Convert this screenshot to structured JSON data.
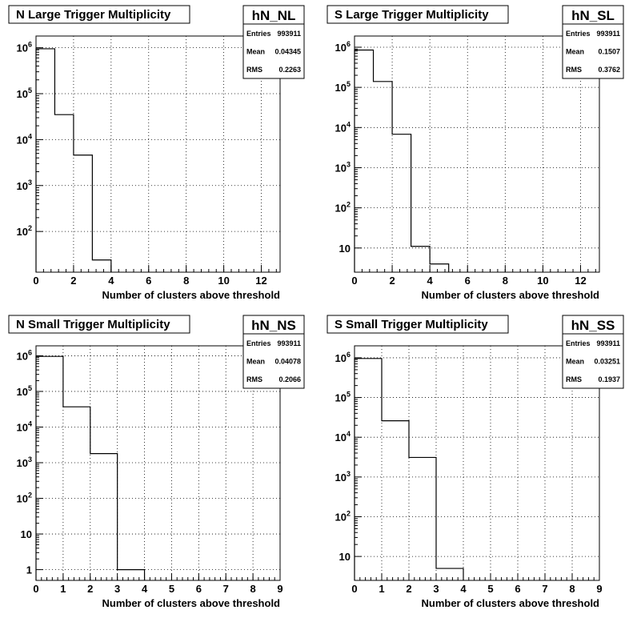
{
  "chart_data": [
    {
      "type": "histogram",
      "title": "N Large Trigger Multiplicity",
      "stats": {
        "name": "hN_NL",
        "entries": "993911",
        "mean": "0.04345",
        "rms": "0.2263"
      },
      "xlabel": "Number of clusters above threshold",
      "xlim": [
        0,
        13
      ],
      "xticks": [
        0,
        2,
        4,
        6,
        8,
        10,
        12
      ],
      "ylim": [
        13,
        1800000
      ],
      "log_y": true,
      "yticks": [
        100,
        1000,
        10000,
        100000,
        1000000
      ],
      "bin_width": 1,
      "bins": [
        {
          "x": 0,
          "y": 950000
        },
        {
          "x": 1,
          "y": 35000
        },
        {
          "x": 2,
          "y": 4600
        },
        {
          "x": 3,
          "y": 24
        }
      ],
      "grid": true
    },
    {
      "type": "histogram",
      "title": "S Large Trigger Multiplicity",
      "stats": {
        "name": "hN_SL",
        "entries": "993911",
        "mean": "0.1507",
        "rms": "0.3762"
      },
      "xlabel": "Number of clusters above threshold",
      "xlim": [
        0,
        13
      ],
      "xticks": [
        0,
        2,
        4,
        6,
        8,
        10,
        12
      ],
      "ylim": [
        2.5,
        1900000
      ],
      "log_y": true,
      "yticks": [
        10,
        100,
        1000,
        10000,
        100000,
        1000000
      ],
      "bin_width": 1,
      "bins": [
        {
          "x": 0,
          "y": 850000
        },
        {
          "x": 1,
          "y": 140000
        },
        {
          "x": 2,
          "y": 6800
        },
        {
          "x": 3,
          "y": 11
        },
        {
          "x": 4,
          "y": 4
        }
      ],
      "grid": true
    },
    {
      "type": "histogram",
      "title": "N Small Trigger Multiplicity",
      "stats": {
        "name": "hN_NS",
        "entries": "993911",
        "mean": "0.04078",
        "rms": "0.2066"
      },
      "xlabel": "Number of clusters above threshold",
      "xlim": [
        0,
        9
      ],
      "xticks": [
        0,
        1,
        2,
        3,
        4,
        5,
        6,
        7,
        8,
        9
      ],
      "ylim": [
        0.5,
        1900000
      ],
      "log_y": true,
      "yticks": [
        1,
        10,
        100,
        1000,
        10000,
        100000,
        1000000
      ],
      "bin_width": 1,
      "bins": [
        {
          "x": 0,
          "y": 960000
        },
        {
          "x": 1,
          "y": 37000
        },
        {
          "x": 2,
          "y": 1800
        },
        {
          "x": 3,
          "y": 1
        }
      ],
      "grid": true
    },
    {
      "type": "histogram",
      "title": "S Small Trigger Multiplicity",
      "stats": {
        "name": "hN_SS",
        "entries": "993911",
        "mean": "0.03251",
        "rms": "0.1937"
      },
      "xlabel": "Number of clusters above threshold",
      "xlim": [
        0,
        9
      ],
      "xticks": [
        0,
        1,
        2,
        3,
        4,
        5,
        6,
        7,
        8,
        9
      ],
      "ylim": [
        2.5,
        2000000
      ],
      "log_y": true,
      "yticks": [
        10,
        100,
        1000,
        10000,
        100000,
        1000000
      ],
      "bin_width": 1,
      "bins": [
        {
          "x": 0,
          "y": 960000
        },
        {
          "x": 1,
          "y": 26000
        },
        {
          "x": 2,
          "y": 3100
        },
        {
          "x": 3,
          "y": 5
        }
      ],
      "grid": true
    }
  ],
  "labels": {
    "entries": "Entries",
    "mean": "Mean",
    "rms": "RMS"
  }
}
